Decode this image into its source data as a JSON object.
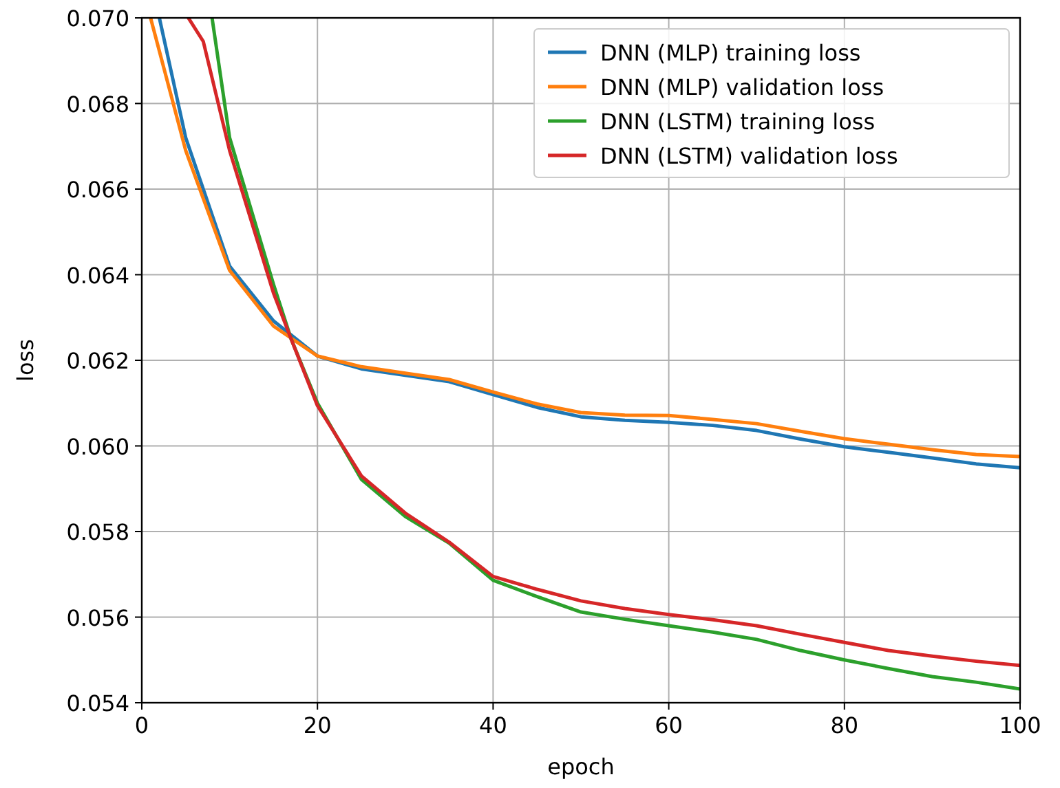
{
  "chart_data": {
    "type": "line",
    "xlabel": "epoch",
    "ylabel": "loss",
    "xlim": [
      0,
      100
    ],
    "ylim": [
      0.054,
      0.07
    ],
    "xticks": [
      0,
      20,
      40,
      60,
      80,
      100
    ],
    "yticks": [
      {
        "value": 0.054,
        "label": "0.054"
      },
      {
        "value": 0.056,
        "label": "0.056"
      },
      {
        "value": 0.058,
        "label": "0.058"
      },
      {
        "value": 0.06,
        "label": "0.060"
      },
      {
        "value": 0.062,
        "label": "0.062"
      },
      {
        "value": 0.064,
        "label": "0.064"
      },
      {
        "value": 0.066,
        "label": "0.066"
      },
      {
        "value": 0.068,
        "label": "0.068"
      },
      {
        "value": 0.07,
        "label": "0.070"
      }
    ],
    "grid": true,
    "legend": "top right",
    "marker": "none",
    "line_style": "solid",
    "series": [
      {
        "name": "DNN (MLP) training loss",
        "color": "#1f77b4",
        "x": [
          2,
          5,
          10,
          15,
          20,
          25,
          30,
          35,
          40,
          45,
          50,
          55,
          60,
          65,
          70,
          75,
          80,
          85,
          90,
          95,
          100
        ],
        "values": [
          0.07,
          0.0672,
          0.0642,
          0.06292,
          0.0621,
          0.0618,
          0.06165,
          0.0615,
          0.0612,
          0.0609,
          0.06068,
          0.0606,
          0.06055,
          0.06048,
          0.06036,
          0.06016,
          0.05998,
          0.05985,
          0.05972,
          0.05958,
          0.05949
        ]
      },
      {
        "name": "DNN (MLP) validation loss",
        "color": "#ff7f0e",
        "x": [
          1,
          5,
          10,
          15,
          20,
          25,
          30,
          35,
          40,
          45,
          50,
          55,
          60,
          65,
          70,
          75,
          80,
          85,
          90,
          95,
          100
        ],
        "values": [
          0.07,
          0.0669,
          0.0641,
          0.0628,
          0.0621,
          0.06185,
          0.0617,
          0.06155,
          0.06126,
          0.06098,
          0.06078,
          0.06072,
          0.06071,
          0.06062,
          0.06052,
          0.06034,
          0.06017,
          0.06004,
          0.05991,
          0.0598,
          0.05975
        ]
      },
      {
        "name": "DNN (LSTM) training loss",
        "color": "#2ca02c",
        "x": [
          8,
          10,
          15,
          17,
          20,
          25,
          30,
          35,
          40,
          45,
          50,
          55,
          60,
          65,
          70,
          75,
          80,
          85,
          90,
          95,
          100
        ],
        "values": [
          0.07,
          0.0672,
          0.06377,
          0.0625,
          0.061,
          0.05922,
          0.05835,
          0.05773,
          0.05686,
          0.05648,
          0.05612,
          0.05595,
          0.0558,
          0.05565,
          0.05548,
          0.05522,
          0.055,
          0.0548,
          0.05461,
          0.05448,
          0.05432
        ]
      },
      {
        "name": "DNN (LSTM) validation loss",
        "color": "#d62728",
        "x": [
          5.3,
          7,
          10,
          15,
          17,
          20,
          25,
          30,
          35,
          40,
          45,
          50,
          55,
          60,
          65,
          70,
          75,
          80,
          85,
          90,
          95,
          100
        ],
        "values": [
          0.07,
          0.06945,
          0.0669,
          0.06357,
          0.0625,
          0.06094,
          0.0593,
          0.05843,
          0.05775,
          0.05695,
          0.05665,
          0.05638,
          0.0562,
          0.05606,
          0.05594,
          0.0558,
          0.0556,
          0.05541,
          0.05522,
          0.05509,
          0.05497,
          0.05487
        ]
      }
    ]
  }
}
